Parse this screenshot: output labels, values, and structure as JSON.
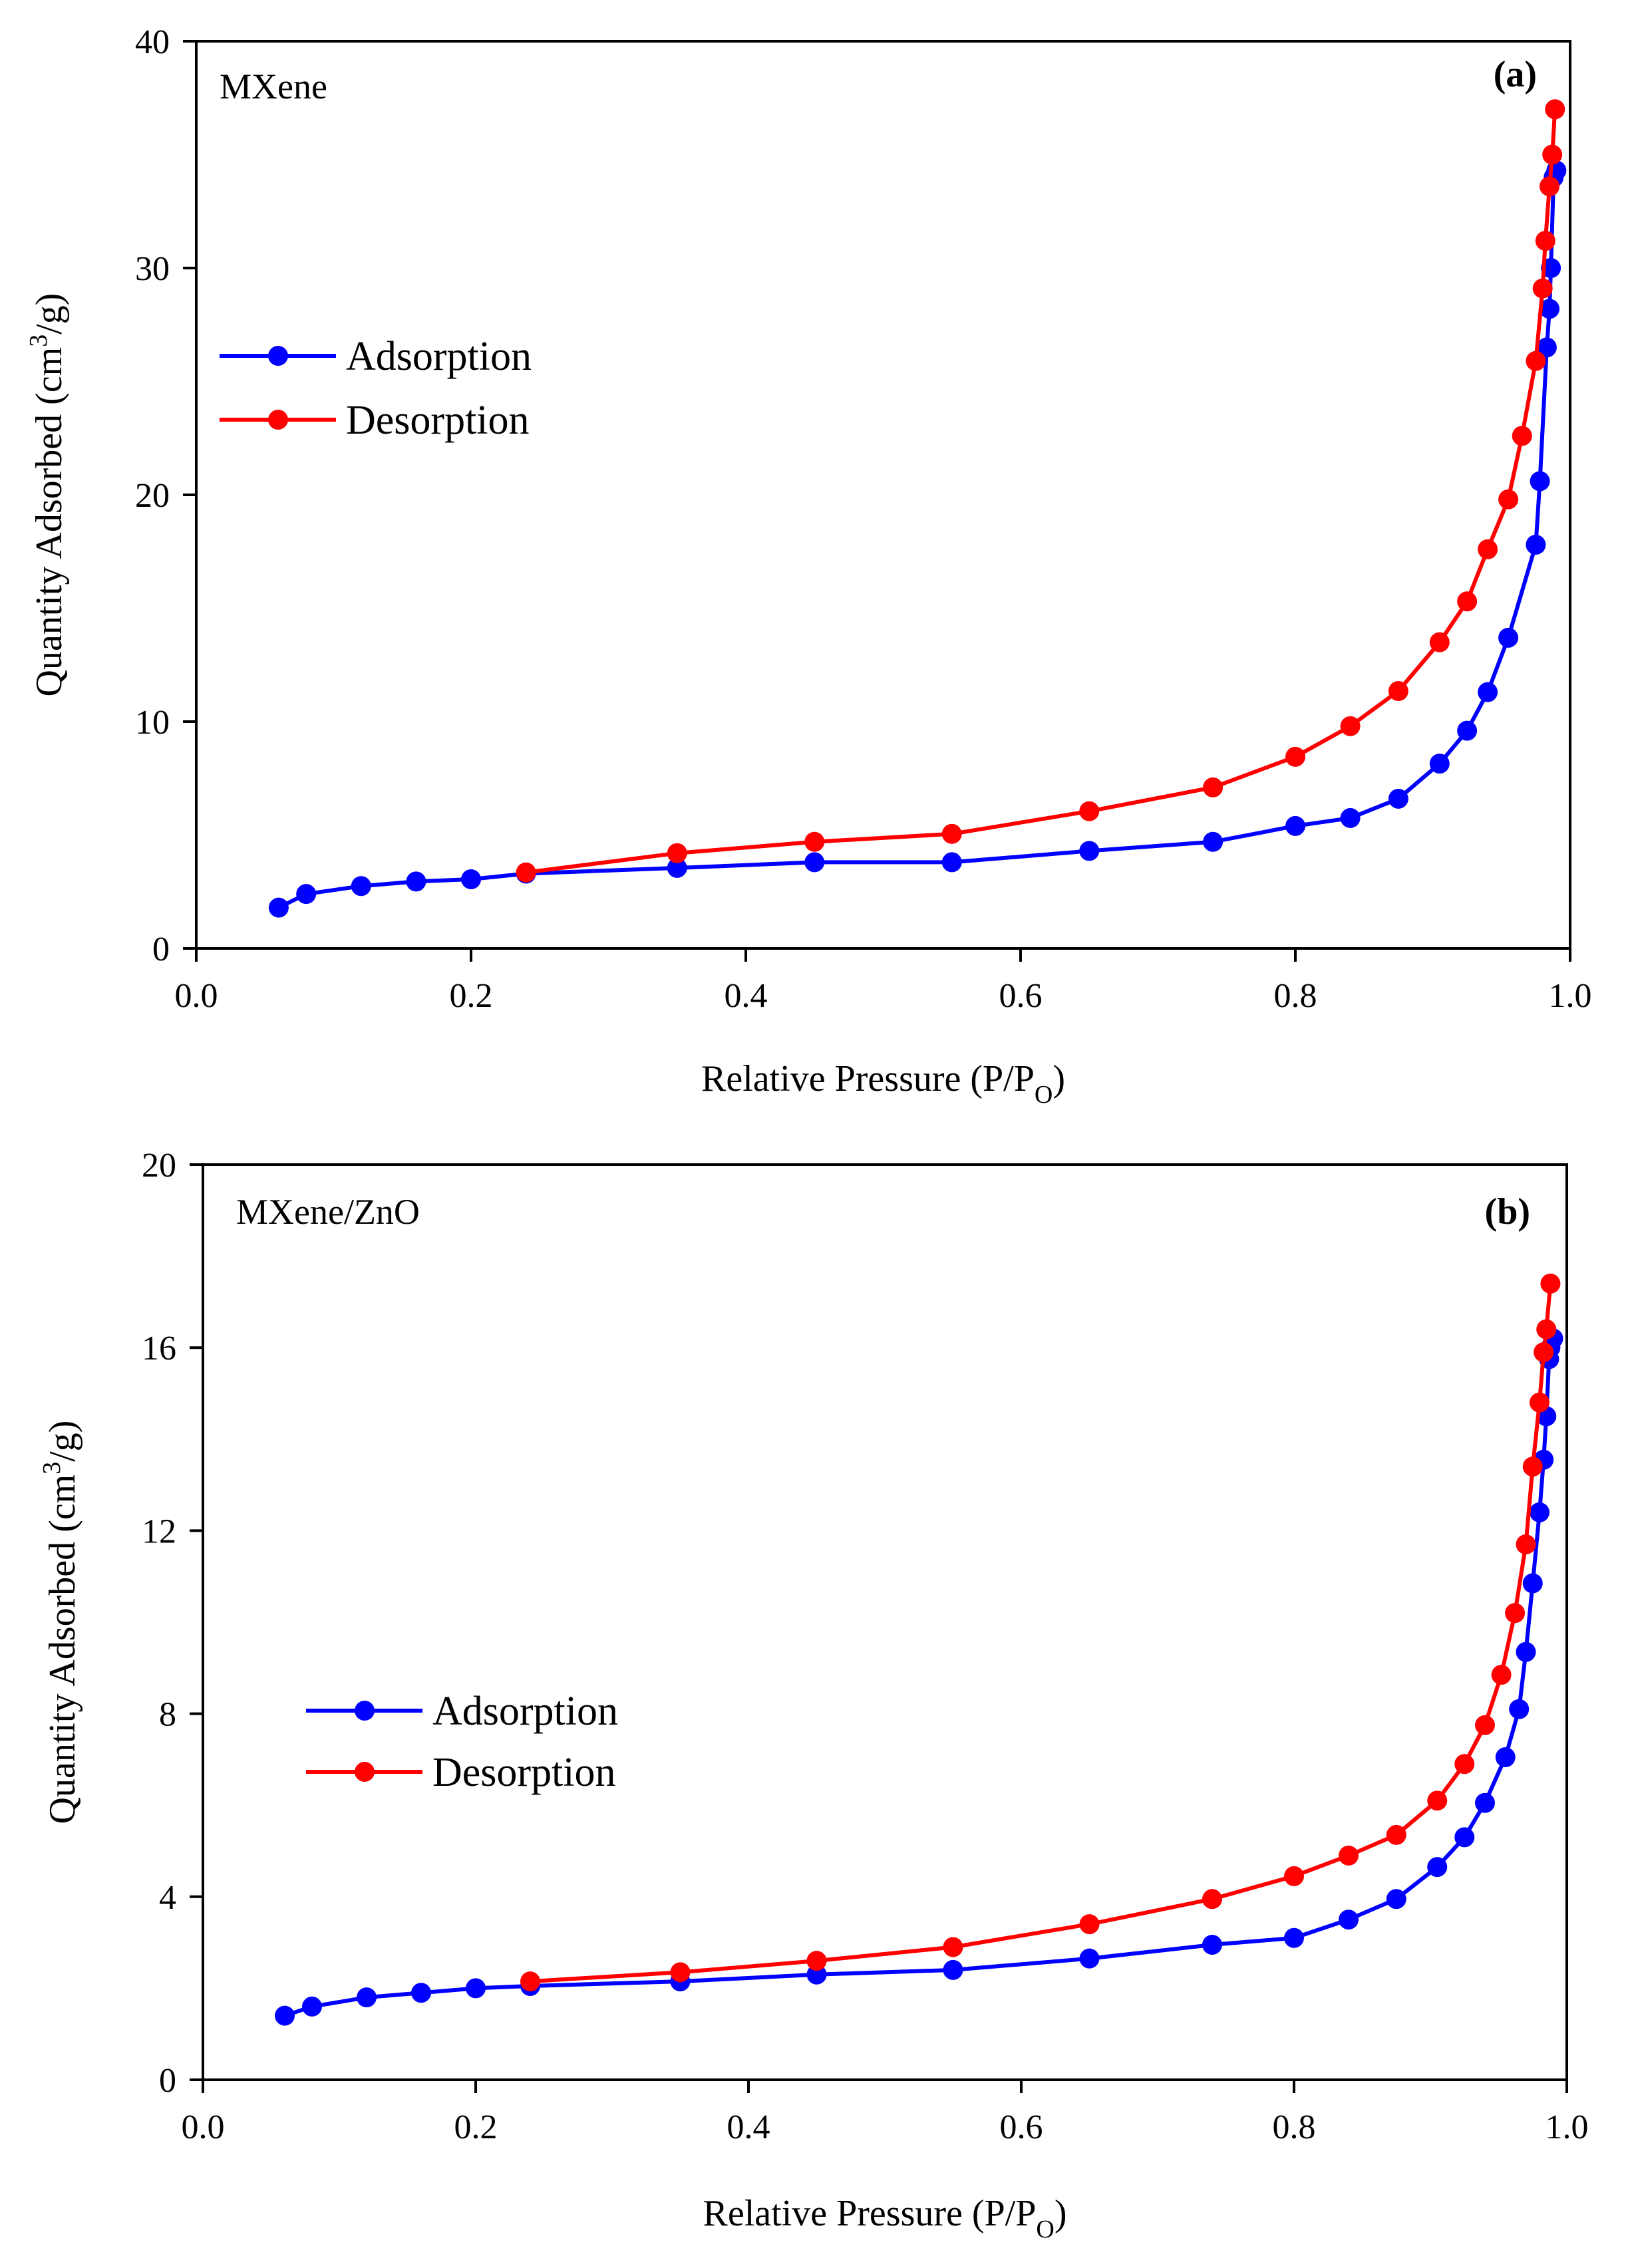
{
  "chart_data": [
    {
      "type": "line",
      "panel_label": "(a)",
      "sample_label": "MXene",
      "xlabel": {
        "main": "Relative Pressure (P/P",
        "sub": "O",
        "close": ")"
      },
      "ylabel": {
        "main": "Quantity Adsorbed (cm",
        "sup": "3",
        "close": "/g)"
      },
      "xlim": [
        0.0,
        1.0
      ],
      "ylim": [
        0,
        40
      ],
      "xticks": [
        "0.0",
        "0.2",
        "0.4",
        "0.6",
        "0.8",
        "1.0"
      ],
      "xtick_values": [
        0.0,
        0.2,
        0.4,
        0.6,
        0.8,
        1.0
      ],
      "yticks": [
        "0",
        "10",
        "20",
        "30",
        "40"
      ],
      "ytick_values": [
        0,
        10,
        20,
        30,
        40
      ],
      "legend_position": "center-left",
      "series": [
        {
          "name": "Adsorption",
          "color": "#0000ff",
          "x": [
            0.06,
            0.08,
            0.12,
            0.16,
            0.2,
            0.24,
            0.35,
            0.45,
            0.55,
            0.65,
            0.74,
            0.8,
            0.84,
            0.875,
            0.905,
            0.925,
            0.94,
            0.955,
            0.975,
            0.978,
            0.983,
            0.985,
            0.986,
            0.988,
            0.99
          ],
          "values": [
            1.8,
            2.4,
            2.75,
            2.95,
            3.05,
            3.3,
            3.55,
            3.8,
            3.8,
            4.3,
            4.7,
            5.4,
            5.75,
            6.6,
            8.15,
            9.6,
            11.3,
            13.7,
            17.8,
            20.6,
            26.5,
            28.2,
            30.0,
            34.0,
            34.3
          ]
        },
        {
          "name": "Desorption",
          "color": "#ff0000",
          "x": [
            0.24,
            0.35,
            0.45,
            0.55,
            0.65,
            0.74,
            0.8,
            0.84,
            0.875,
            0.905,
            0.925,
            0.94,
            0.955,
            0.965,
            0.975,
            0.98,
            0.982,
            0.985,
            0.987,
            0.989
          ],
          "values": [
            3.35,
            4.2,
            4.7,
            5.05,
            6.05,
            7.1,
            8.45,
            9.8,
            11.35,
            13.5,
            15.3,
            17.6,
            19.8,
            22.6,
            25.9,
            29.1,
            31.2,
            33.6,
            35.0,
            37.0
          ]
        }
      ]
    },
    {
      "type": "line",
      "panel_label": "(b)",
      "sample_label": "MXene/ZnO",
      "xlabel": {
        "main": "Relative Pressure (P/P",
        "sub": "O",
        "close": ")"
      },
      "ylabel": {
        "main": "Quantity Adsorbed (cm",
        "sup": "3",
        "close": "/g)"
      },
      "xlim": [
        0.0,
        1.0
      ],
      "ylim": [
        0,
        20
      ],
      "xticks": [
        "0.0",
        "0.2",
        "0.4",
        "0.6",
        "0.8",
        "1.0"
      ],
      "xtick_values": [
        0.0,
        0.2,
        0.4,
        0.6,
        0.8,
        1.0
      ],
      "yticks": [
        "0",
        "4",
        "8",
        "12",
        "16",
        "20"
      ],
      "ytick_values": [
        0,
        4,
        8,
        12,
        16,
        20
      ],
      "legend_position": "center-left",
      "series": [
        {
          "name": "Adsorption",
          "color": "#0000ff",
          "x": [
            0.06,
            0.08,
            0.12,
            0.16,
            0.2,
            0.24,
            0.35,
            0.45,
            0.55,
            0.65,
            0.74,
            0.8,
            0.84,
            0.875,
            0.905,
            0.925,
            0.94,
            0.955,
            0.965,
            0.97,
            0.975,
            0.98,
            0.983,
            0.985,
            0.987,
            0.988,
            0.99
          ],
          "values": [
            1.4,
            1.6,
            1.8,
            1.9,
            2.0,
            2.05,
            2.15,
            2.3,
            2.4,
            2.65,
            2.95,
            3.1,
            3.5,
            3.95,
            4.65,
            5.3,
            6.05,
            7.05,
            8.1,
            9.35,
            10.85,
            12.4,
            13.55,
            14.5,
            15.75,
            16.0,
            16.2
          ]
        },
        {
          "name": "Desorption",
          "color": "#ff0000",
          "x": [
            0.24,
            0.35,
            0.45,
            0.55,
            0.65,
            0.74,
            0.8,
            0.84,
            0.875,
            0.905,
            0.925,
            0.94,
            0.952,
            0.962,
            0.97,
            0.975,
            0.98,
            0.983,
            0.985,
            0.988
          ],
          "values": [
            2.15,
            2.35,
            2.6,
            2.9,
            3.4,
            3.95,
            4.45,
            4.9,
            5.35,
            6.1,
            6.9,
            7.75,
            8.85,
            10.2,
            11.7,
            13.4,
            14.8,
            15.9,
            16.4,
            17.4
          ]
        }
      ]
    }
  ]
}
